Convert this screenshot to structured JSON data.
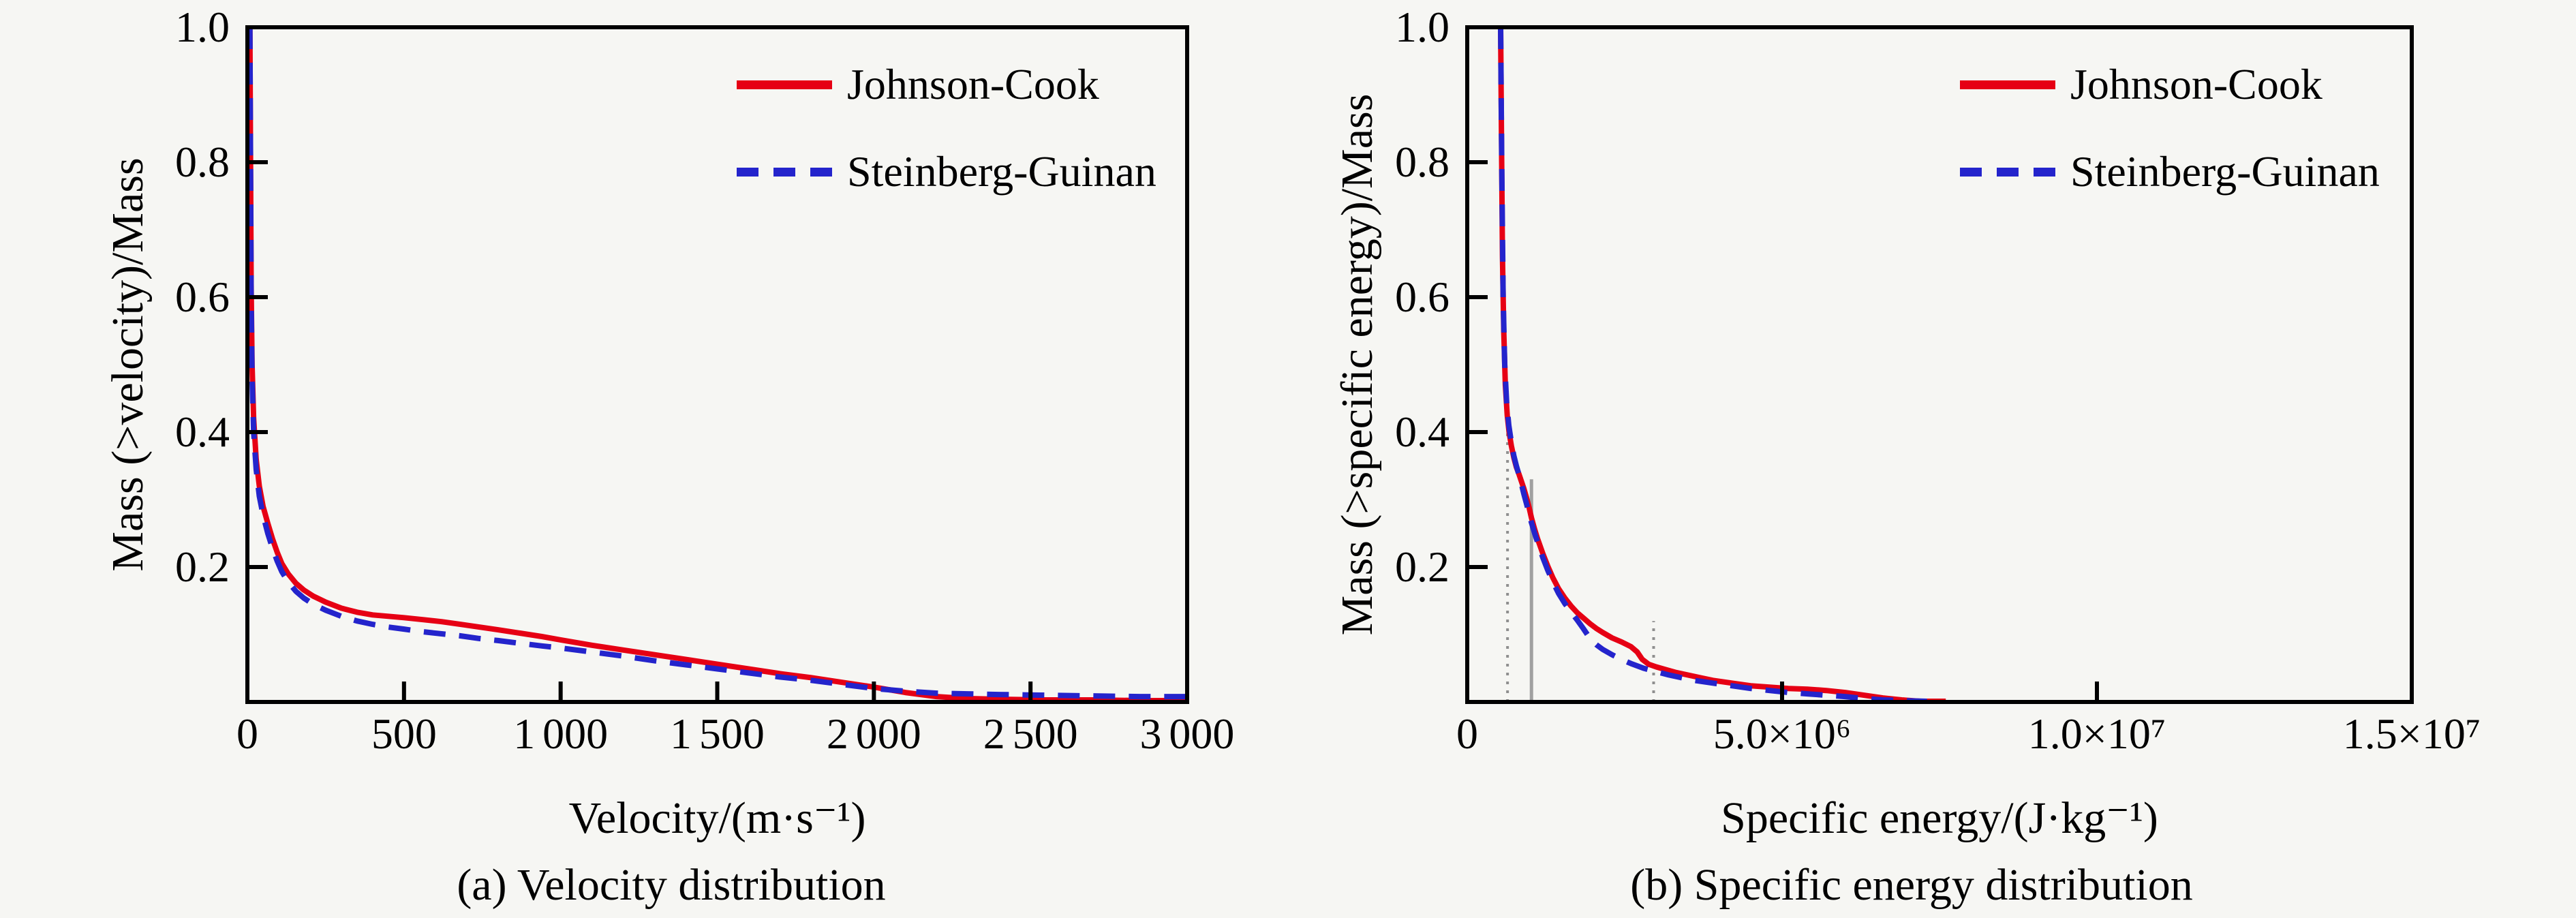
{
  "figure": {
    "background": "#f6f6f3",
    "axis_color": "#000000",
    "text_color": "#000000",
    "legend_items": [
      "Johnson-Cook",
      "Steinberg-Guinan"
    ]
  },
  "chart_data": [
    {
      "type": "line",
      "caption": "(a) Velocity distribution",
      "xlabel": "Velocity/(m·s⁻¹)",
      "ylabel": "Mass (>velocity)/Mass",
      "xlim": [
        0,
        3000
      ],
      "ylim": [
        0,
        1.0
      ],
      "grid": false,
      "legend_position": "top-right-inside",
      "xticks": [
        {
          "value": 0,
          "label": "0"
        },
        {
          "value": 500,
          "label": "500"
        },
        {
          "value": 1000,
          "label": "1 000"
        },
        {
          "value": 1500,
          "label": "1 500"
        },
        {
          "value": 2000,
          "label": "2 000"
        },
        {
          "value": 2500,
          "label": "2 500"
        },
        {
          "value": 3000,
          "label": "3 000"
        }
      ],
      "yticks": [
        {
          "value": 0.2,
          "label": "0.2"
        },
        {
          "value": 0.4,
          "label": "0.4"
        },
        {
          "value": 0.6,
          "label": "0.6"
        },
        {
          "value": 0.8,
          "label": "0.8"
        },
        {
          "value": 1.0,
          "label": "1.0"
        }
      ],
      "series": [
        {
          "name": "Johnson-Cook",
          "color": "#e60014",
          "line_style": "solid",
          "points": [
            [
              8,
              1.0
            ],
            [
              12,
              0.62
            ],
            [
              15,
              0.5
            ],
            [
              20,
              0.42
            ],
            [
              28,
              0.36
            ],
            [
              38,
              0.32
            ],
            [
              50,
              0.29
            ],
            [
              65,
              0.265
            ],
            [
              80,
              0.242
            ],
            [
              95,
              0.222
            ],
            [
              110,
              0.205
            ],
            [
              130,
              0.19
            ],
            [
              155,
              0.176
            ],
            [
              180,
              0.166
            ],
            [
              210,
              0.157
            ],
            [
              250,
              0.148
            ],
            [
              300,
              0.139
            ],
            [
              350,
              0.133
            ],
            [
              400,
              0.129
            ],
            [
              450,
              0.127
            ],
            [
              500,
              0.125
            ],
            [
              560,
              0.122
            ],
            [
              620,
              0.119
            ],
            [
              680,
              0.115
            ],
            [
              740,
              0.111
            ],
            [
              800,
              0.107
            ],
            [
              870,
              0.102
            ],
            [
              940,
              0.097
            ],
            [
              1000,
              0.092
            ],
            [
              1100,
              0.084
            ],
            [
              1200,
              0.077
            ],
            [
              1300,
              0.07
            ],
            [
              1400,
              0.063
            ],
            [
              1500,
              0.056
            ],
            [
              1600,
              0.049
            ],
            [
              1700,
              0.042
            ],
            [
              1800,
              0.036
            ],
            [
              1900,
              0.029
            ],
            [
              2000,
              0.022
            ],
            [
              2100,
              0.014
            ],
            [
              2200,
              0.008
            ],
            [
              2300,
              0.005
            ],
            [
              2400,
              0.004
            ],
            [
              2550,
              0.003
            ],
            [
              2700,
              0.003
            ],
            [
              2850,
              0.002
            ],
            [
              3000,
              0.002
            ]
          ]
        },
        {
          "name": "Steinberg-Guinan",
          "color": "#2424cc",
          "line_style": "dashed",
          "points": [
            [
              8,
              1.0
            ],
            [
              12,
              0.6
            ],
            [
              15,
              0.48
            ],
            [
              20,
              0.4
            ],
            [
              28,
              0.345
            ],
            [
              38,
              0.305
            ],
            [
              50,
              0.277
            ],
            [
              65,
              0.25
            ],
            [
              80,
              0.228
            ],
            [
              95,
              0.209
            ],
            [
              110,
              0.193
            ],
            [
              130,
              0.178
            ],
            [
              155,
              0.164
            ],
            [
              180,
              0.154
            ],
            [
              210,
              0.145
            ],
            [
              250,
              0.136
            ],
            [
              300,
              0.127
            ],
            [
              350,
              0.12
            ],
            [
              400,
              0.115
            ],
            [
              450,
              0.111
            ],
            [
              500,
              0.108
            ],
            [
              560,
              0.104
            ],
            [
              620,
              0.101
            ],
            [
              680,
              0.098
            ],
            [
              740,
              0.094
            ],
            [
              800,
              0.091
            ],
            [
              870,
              0.087
            ],
            [
              940,
              0.083
            ],
            [
              1000,
              0.08
            ],
            [
              1100,
              0.074
            ],
            [
              1200,
              0.068
            ],
            [
              1300,
              0.061
            ],
            [
              1400,
              0.055
            ],
            [
              1500,
              0.049
            ],
            [
              1600,
              0.043
            ],
            [
              1700,
              0.037
            ],
            [
              1800,
              0.032
            ],
            [
              1900,
              0.026
            ],
            [
              2000,
              0.02
            ],
            [
              2100,
              0.016
            ],
            [
              2200,
              0.013
            ],
            [
              2300,
              0.012
            ],
            [
              2400,
              0.011
            ],
            [
              2550,
              0.01
            ],
            [
              2700,
              0.009
            ],
            [
              2850,
              0.008
            ],
            [
              3000,
              0.008
            ]
          ]
        }
      ]
    },
    {
      "type": "line",
      "caption": "(b) Specific energy distribution",
      "xlabel": "Specific energy/(J·kg⁻¹)",
      "ylabel": "Mass (>specific energy)/Mass",
      "xlim": [
        0,
        15000000
      ],
      "ylim": [
        0,
        1.0
      ],
      "grid": false,
      "legend_position": "top-right-inside",
      "xticks": [
        {
          "value": 0,
          "label": "0"
        },
        {
          "value": 5000000,
          "label": "5.0×10⁶"
        },
        {
          "value": 10000000,
          "label": "1.0×10⁷"
        },
        {
          "value": 15000000,
          "label": "1.5×10⁷"
        }
      ],
      "yticks": [
        {
          "value": 0.2,
          "label": "0.2"
        },
        {
          "value": 0.4,
          "label": "0.4"
        },
        {
          "value": 0.6,
          "label": "0.6"
        },
        {
          "value": 0.8,
          "label": "0.8"
        },
        {
          "value": 1.0,
          "label": "1.0"
        }
      ],
      "annotation_lines": [
        {
          "x": 640000,
          "y_top": 0.46,
          "style": "dotted",
          "color": "#8f8f8f"
        },
        {
          "x": 1020000,
          "y_top": 0.33,
          "style": "solid",
          "color": "#a0a0a0"
        },
        {
          "x": 2960000,
          "y_top": 0.12,
          "style": "dotted",
          "color": "#8f8f8f"
        }
      ],
      "series": [
        {
          "name": "Johnson-Cook",
          "color": "#e60014",
          "line_style": "solid",
          "points": [
            [
              530000,
              1.0
            ],
            [
              545000,
              0.82
            ],
            [
              560000,
              0.66
            ],
            [
              580000,
              0.55
            ],
            [
              605000,
              0.47
            ],
            [
              635000,
              0.425
            ],
            [
              665000,
              0.4
            ],
            [
              700000,
              0.38
            ],
            [
              740000,
              0.362
            ],
            [
              780000,
              0.348
            ],
            [
              820000,
              0.338
            ],
            [
              860000,
              0.327
            ],
            [
              900000,
              0.316
            ],
            [
              940000,
              0.303
            ],
            [
              980000,
              0.289
            ],
            [
              1020000,
              0.273
            ],
            [
              1070000,
              0.256
            ],
            [
              1120000,
              0.241
            ],
            [
              1200000,
              0.22
            ],
            [
              1280000,
              0.201
            ],
            [
              1360000,
              0.184
            ],
            [
              1450000,
              0.168
            ],
            [
              1550000,
              0.154
            ],
            [
              1650000,
              0.142
            ],
            [
              1750000,
              0.132
            ],
            [
              1850000,
              0.124
            ],
            [
              1950000,
              0.116
            ],
            [
              2050000,
              0.109
            ],
            [
              2150000,
              0.103
            ],
            [
              2300000,
              0.095
            ],
            [
              2450000,
              0.089
            ],
            [
              2600000,
              0.082
            ],
            [
              2700000,
              0.074
            ],
            [
              2780000,
              0.063
            ],
            [
              2880000,
              0.056
            ],
            [
              3000000,
              0.052
            ],
            [
              3150000,
              0.048
            ],
            [
              3300000,
              0.044
            ],
            [
              3500000,
              0.04
            ],
            [
              3700000,
              0.036
            ],
            [
              3900000,
              0.032
            ],
            [
              4200000,
              0.028
            ],
            [
              4500000,
              0.024
            ],
            [
              4800000,
              0.022
            ],
            [
              5100000,
              0.02
            ],
            [
              5400000,
              0.019
            ],
            [
              5700000,
              0.017
            ],
            [
              6000000,
              0.014
            ],
            [
              6300000,
              0.01
            ],
            [
              6600000,
              0.006
            ],
            [
              6900000,
              0.003
            ],
            [
              7200000,
              0.001
            ],
            [
              7600000,
              0.001
            ]
          ]
        },
        {
          "name": "Steinberg-Guinan",
          "color": "#2424cc",
          "line_style": "dashed",
          "points": [
            [
              530000,
              1.0
            ],
            [
              550000,
              0.78
            ],
            [
              570000,
              0.6
            ],
            [
              595000,
              0.5
            ],
            [
              625000,
              0.445
            ],
            [
              660000,
              0.41
            ],
            [
              700000,
              0.385
            ],
            [
              740000,
              0.365
            ],
            [
              780000,
              0.35
            ],
            [
              820000,
              0.337
            ],
            [
              860000,
              0.323
            ],
            [
              900000,
              0.308
            ],
            [
              940000,
              0.294
            ],
            [
              980000,
              0.28
            ],
            [
              1020000,
              0.266
            ],
            [
              1070000,
              0.25
            ],
            [
              1120000,
              0.236
            ],
            [
              1200000,
              0.214
            ],
            [
              1280000,
              0.195
            ],
            [
              1360000,
              0.178
            ],
            [
              1450000,
              0.161
            ],
            [
              1550000,
              0.146
            ],
            [
              1650000,
              0.133
            ],
            [
              1750000,
              0.121
            ],
            [
              1850000,
              0.108
            ],
            [
              1950000,
              0.094
            ],
            [
              2050000,
              0.085
            ],
            [
              2150000,
              0.078
            ],
            [
              2300000,
              0.07
            ],
            [
              2450000,
              0.063
            ],
            [
              2600000,
              0.057
            ],
            [
              2800000,
              0.05
            ],
            [
              3000000,
              0.045
            ],
            [
              3200000,
              0.04
            ],
            [
              3400000,
              0.036
            ],
            [
              3600000,
              0.032
            ],
            [
              3900000,
              0.028
            ],
            [
              4200000,
              0.024
            ],
            [
              4500000,
              0.02
            ],
            [
              4800000,
              0.017
            ],
            [
              5100000,
              0.014
            ],
            [
              5400000,
              0.012
            ],
            [
              5700000,
              0.01
            ],
            [
              6000000,
              0.008
            ],
            [
              6300000,
              0.005
            ],
            [
              6600000,
              0.003
            ],
            [
              6900000,
              0.002
            ],
            [
              7300000,
              0.001
            ]
          ]
        }
      ]
    }
  ]
}
